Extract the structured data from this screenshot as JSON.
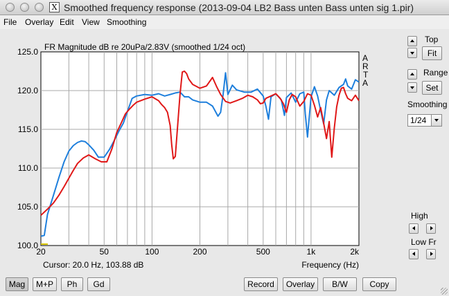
{
  "window": {
    "title": "Smoothed frequency response (2013-09-04 LB2 Bass unten Bass unten sig 1.pir)",
    "app_icon_text": "X"
  },
  "menu": [
    "File",
    "Overlay",
    "Edit",
    "View",
    "Smoothing"
  ],
  "chart_data": {
    "type": "line",
    "title": "FR Magnitude dB re 20uPa/2.83V (smoothed 1/24 oct)",
    "xlabel": "Frequency (Hz)",
    "ylabel": "",
    "x_scale": "log",
    "xlim": [
      20,
      2000
    ],
    "ylim": [
      100,
      125
    ],
    "x_ticks": [
      {
        "value": 20,
        "label": "20"
      },
      {
        "value": 50,
        "label": "50"
      },
      {
        "value": 100,
        "label": "100"
      },
      {
        "value": 200,
        "label": "200"
      },
      {
        "value": 500,
        "label": "500"
      },
      {
        "value": 1000,
        "label": "1k"
      },
      {
        "value": 2000,
        "label": "2k"
      }
    ],
    "y_ticks": [
      {
        "value": 100,
        "label": "100.0"
      },
      {
        "value": 105,
        "label": "105.0"
      },
      {
        "value": 110,
        "label": "110.0"
      },
      {
        "value": 115,
        "label": "115.0"
      },
      {
        "value": 120,
        "label": "120.0"
      },
      {
        "value": 125,
        "label": "125.0"
      }
    ],
    "watermark": [
      "A",
      "R",
      "T",
      "A"
    ],
    "cursor_text": "Cursor: 20.0 Hz, 103.88 dB",
    "grid": true,
    "background": "#ffffff",
    "series": [
      {
        "color": "#1e7fdc",
        "points": [
          [
            20,
            101.2
          ],
          [
            21,
            101.3
          ],
          [
            22,
            104
          ],
          [
            24,
            106.5
          ],
          [
            26,
            108.8
          ],
          [
            28,
            110.8
          ],
          [
            30,
            112.2
          ],
          [
            32,
            112.9
          ],
          [
            34,
            113.3
          ],
          [
            36,
            113.5
          ],
          [
            38,
            113.4
          ],
          [
            40,
            113.0
          ],
          [
            43,
            112.3
          ],
          [
            46,
            111.4
          ],
          [
            50,
            111.4
          ],
          [
            54,
            112.4
          ],
          [
            58,
            113.6
          ],
          [
            62,
            114.8
          ],
          [
            66,
            115.8
          ],
          [
            70,
            117.3
          ],
          [
            75,
            119.0
          ],
          [
            80,
            119.3
          ],
          [
            90,
            119.5
          ],
          [
            100,
            119.4
          ],
          [
            110,
            119.6
          ],
          [
            120,
            119.3
          ],
          [
            130,
            119.5
          ],
          [
            140,
            119.7
          ],
          [
            150,
            119.8
          ],
          [
            160,
            119.2
          ],
          [
            170,
            119.2
          ],
          [
            180,
            118.8
          ],
          [
            200,
            118.5
          ],
          [
            220,
            118.5
          ],
          [
            240,
            118.0
          ],
          [
            260,
            116.7
          ],
          [
            270,
            117.2
          ],
          [
            280,
            119.5
          ],
          [
            290,
            122.3
          ],
          [
            300,
            119.5
          ],
          [
            320,
            120.7
          ],
          [
            340,
            120.1
          ],
          [
            380,
            119.8
          ],
          [
            420,
            119.8
          ],
          [
            460,
            120.2
          ],
          [
            500,
            119.3
          ],
          [
            520,
            118.0
          ],
          [
            540,
            116.3
          ],
          [
            560,
            119.2
          ],
          [
            600,
            119.6
          ],
          [
            650,
            118.8
          ],
          [
            680,
            116.8
          ],
          [
            700,
            119.1
          ],
          [
            750,
            119.7
          ],
          [
            800,
            118.5
          ],
          [
            850,
            119.6
          ],
          [
            900,
            119.8
          ],
          [
            920,
            117.0
          ],
          [
            950,
            114.0
          ],
          [
            1000,
            119.2
          ],
          [
            1050,
            120.5
          ],
          [
            1100,
            119.3
          ],
          [
            1150,
            117.4
          ],
          [
            1200,
            115.7
          ],
          [
            1250,
            118.8
          ],
          [
            1300,
            120.0
          ],
          [
            1400,
            119.4
          ],
          [
            1500,
            120.4
          ],
          [
            1600,
            120.8
          ],
          [
            1650,
            121.5
          ],
          [
            1700,
            120.6
          ],
          [
            1800,
            120.2
          ],
          [
            1900,
            121.4
          ],
          [
            2000,
            121.1
          ]
        ]
      },
      {
        "color": "#e01818",
        "points": [
          [
            20,
            103.9
          ],
          [
            22,
            104.7
          ],
          [
            24,
            105.5
          ],
          [
            26,
            106.5
          ],
          [
            28,
            107.6
          ],
          [
            30,
            108.7
          ],
          [
            32,
            109.7
          ],
          [
            34,
            110.6
          ],
          [
            37,
            111.3
          ],
          [
            40,
            111.7
          ],
          [
            44,
            111.2
          ],
          [
            48,
            110.8
          ],
          [
            52,
            110.8
          ],
          [
            56,
            112.5
          ],
          [
            60,
            114.6
          ],
          [
            64,
            115.8
          ],
          [
            68,
            117.0
          ],
          [
            72,
            117.6
          ],
          [
            76,
            118.1
          ],
          [
            80,
            118.5
          ],
          [
            90,
            118.9
          ],
          [
            100,
            119.2
          ],
          [
            110,
            118.7
          ],
          [
            115,
            118.2
          ],
          [
            120,
            117.8
          ],
          [
            125,
            117.2
          ],
          [
            130,
            115.5
          ],
          [
            133,
            113.0
          ],
          [
            136,
            111.2
          ],
          [
            140,
            111.5
          ],
          [
            145,
            115.5
          ],
          [
            150,
            119.5
          ],
          [
            155,
            122.4
          ],
          [
            160,
            122.5
          ],
          [
            165,
            122.2
          ],
          [
            170,
            121.5
          ],
          [
            180,
            120.8
          ],
          [
            200,
            120.3
          ],
          [
            220,
            120.6
          ],
          [
            240,
            121.7
          ],
          [
            255,
            120.5
          ],
          [
            270,
            119.5
          ],
          [
            290,
            118.6
          ],
          [
            310,
            118.4
          ],
          [
            340,
            118.7
          ],
          [
            370,
            119.0
          ],
          [
            400,
            119.4
          ],
          [
            430,
            119.2
          ],
          [
            460,
            118.8
          ],
          [
            480,
            118.3
          ],
          [
            500,
            118.4
          ],
          [
            520,
            119.0
          ],
          [
            560,
            119.3
          ],
          [
            600,
            119.6
          ],
          [
            640,
            119.0
          ],
          [
            670,
            118.3
          ],
          [
            700,
            117.2
          ],
          [
            730,
            118.8
          ],
          [
            760,
            119.5
          ],
          [
            800,
            119.2
          ],
          [
            850,
            118.0
          ],
          [
            900,
            118.6
          ],
          [
            950,
            119.6
          ],
          [
            1000,
            119.4
          ],
          [
            1050,
            118.1
          ],
          [
            1100,
            116.6
          ],
          [
            1150,
            117.8
          ],
          [
            1200,
            115.8
          ],
          [
            1250,
            113.8
          ],
          [
            1300,
            116.0
          ],
          [
            1350,
            111.4
          ],
          [
            1400,
            115.2
          ],
          [
            1450,
            117.9
          ],
          [
            1500,
            119.4
          ],
          [
            1550,
            120.3
          ],
          [
            1600,
            120.4
          ],
          [
            1650,
            119.6
          ],
          [
            1700,
            119.0
          ],
          [
            1800,
            118.7
          ],
          [
            1900,
            119.4
          ],
          [
            2000,
            118.7
          ]
        ]
      }
    ]
  },
  "sidebar": {
    "top_label": "Top",
    "top_button": "Fit",
    "range_label": "Range",
    "range_button": "Set",
    "smoothing_label": "Smoothing",
    "smoothing_value": "1/24",
    "high_label": "High",
    "lowfr_label": "Low Fr"
  },
  "bottom_bar": {
    "mag": "Mag",
    "mp": "M+P",
    "ph": "Ph",
    "gd": "Gd",
    "record": "Record",
    "overlay": "Overlay",
    "bw": "B/W",
    "copy": "Copy"
  }
}
